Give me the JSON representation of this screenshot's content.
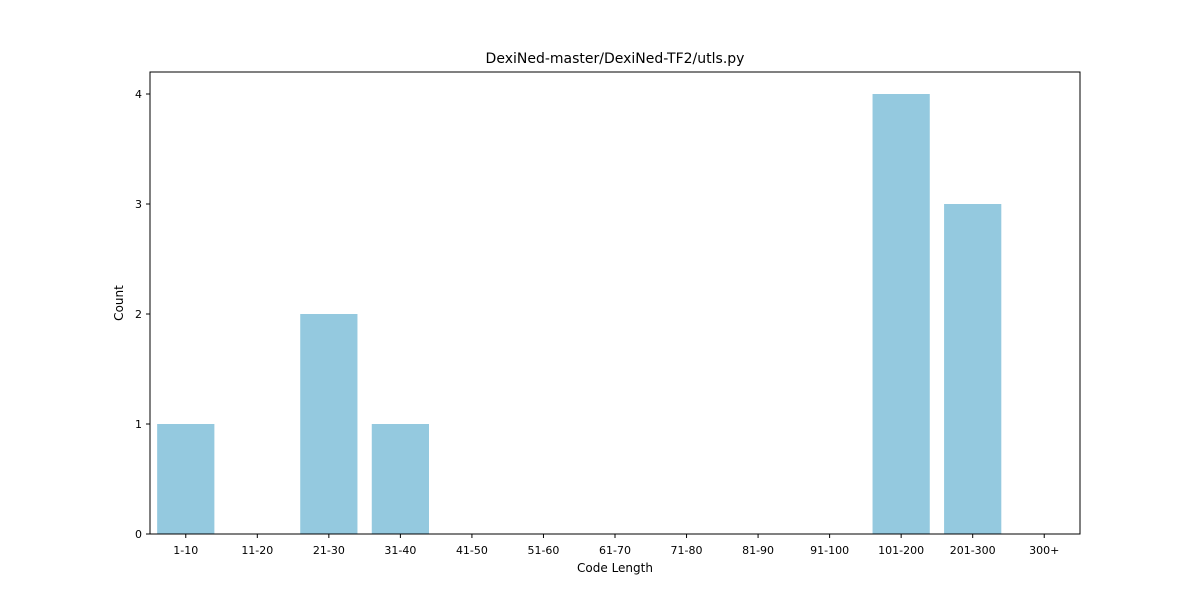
{
  "chart_data": {
    "type": "bar",
    "title": "DexiNed-master/DexiNed-TF2/utls.py",
    "xlabel": "Code Length",
    "ylabel": "Count",
    "categories": [
      "1-10",
      "11-20",
      "21-30",
      "31-40",
      "41-50",
      "51-60",
      "61-70",
      "71-80",
      "81-90",
      "91-100",
      "101-200",
      "201-300",
      "300+"
    ],
    "values": [
      1,
      0,
      2,
      1,
      0,
      0,
      0,
      0,
      0,
      0,
      4,
      3,
      0
    ],
    "ylim": [
      0,
      4.2
    ],
    "yticks": [
      "0",
      "1",
      "2",
      "3",
      "4"
    ],
    "bar_color": "#94c9df",
    "grid": false,
    "legend": "none"
  }
}
